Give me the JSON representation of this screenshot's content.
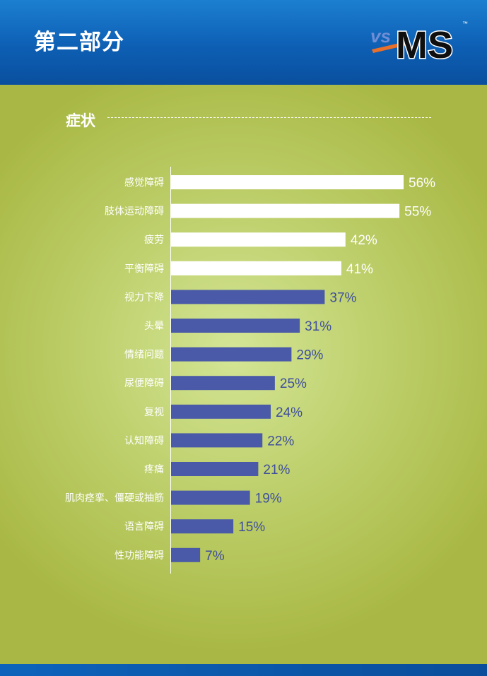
{
  "header": {
    "title": "第二部分",
    "logo_text_vs": "vs",
    "logo_text_ms": "MS",
    "logo_tm": "™"
  },
  "section": {
    "title": "症状"
  },
  "colors": {
    "highlight_bar": "#ffffff",
    "regular_bar": "#4a5aa8",
    "highlight_value": "#ffffff",
    "regular_value": "#3f4f9c",
    "category_label": "#ffffff"
  },
  "chart_data": {
    "type": "bar",
    "orientation": "horizontal",
    "title": "",
    "categories": [
      "感觉障碍",
      "肢体运动障碍",
      "疲劳",
      "平衡障碍",
      "视力下降",
      "头晕",
      "情绪问题",
      "尿便障碍",
      "复视",
      "认知障碍",
      "疼痛",
      "肌肉痉挛、僵硬或抽筋",
      "语言障碍",
      "性功能障碍"
    ],
    "values": [
      56,
      55,
      42,
      41,
      37,
      31,
      29,
      25,
      24,
      22,
      21,
      19,
      15,
      7
    ],
    "value_labels": [
      "56%",
      "55%",
      "42%",
      "41%",
      "37%",
      "31%",
      "29%",
      "25%",
      "24%",
      "22%",
      "21%",
      "19%",
      "15%",
      "7%"
    ],
    "highlighted": [
      true,
      true,
      true,
      true,
      false,
      false,
      false,
      false,
      false,
      false,
      false,
      false,
      false,
      false
    ],
    "unit": "%",
    "xlim": [
      0,
      56
    ],
    "grid": false,
    "legend": "none"
  }
}
